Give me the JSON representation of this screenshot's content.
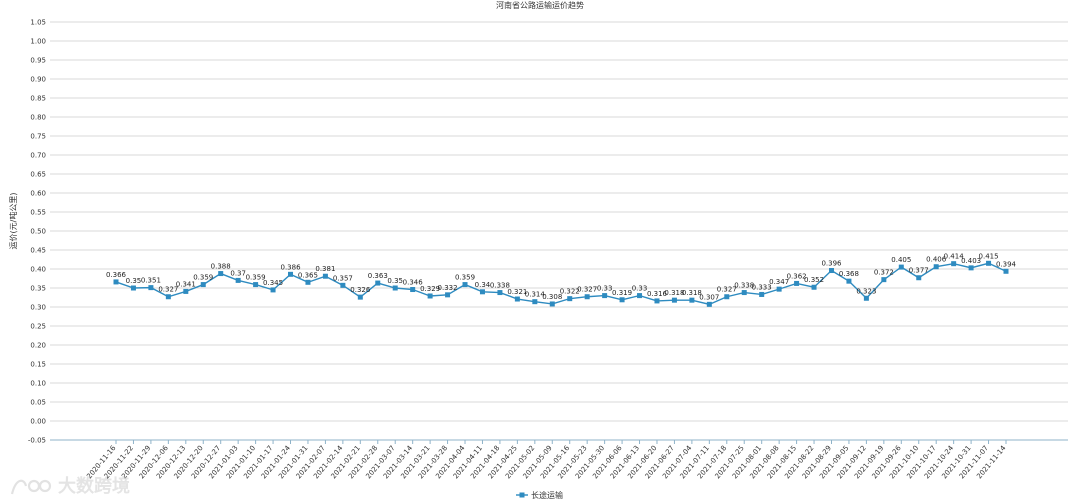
{
  "chart_data": {
    "type": "line",
    "title": "河南省公路运输运价趋势",
    "ylabel": "运价(元/吨公里)",
    "xlabel": "",
    "ylim": [
      -0.05,
      1.05
    ],
    "yticks": [
      "1.05",
      "1.00",
      "0.95",
      "0.90",
      "0.85",
      "0.80",
      "0.75",
      "0.70",
      "0.65",
      "0.60",
      "0.55",
      "0.50",
      "0.45",
      "0.40",
      "0.35",
      "0.30",
      "0.25",
      "0.20",
      "0.15",
      "0.10",
      "0.05",
      "0.00",
      "-0.05"
    ],
    "categories": [
      "2020-11-16",
      "2020-11-22",
      "2020-11-29",
      "2020-12-06",
      "2020-12-13",
      "2020-12-20",
      "2020-12-27",
      "2021-01-03",
      "2021-01-10",
      "2021-01-17",
      "2021-01-24",
      "2021-01-31",
      "2021-02-07",
      "2021-02-14",
      "2021-02-21",
      "2021-02-28",
      "2021-03-07",
      "2021-03-14",
      "2021-03-21",
      "2021-03-28",
      "2021-04-04",
      "2021-04-11",
      "2021-04-18",
      "2021-04-25",
      "2021-05-02",
      "2021-05-09",
      "2021-05-16",
      "2021-05-23",
      "2021-05-30",
      "2021-06-06",
      "2021-06-13",
      "2021-06-20",
      "2021-06-27",
      "2021-07-04",
      "2021-07-11",
      "2021-07-18",
      "2021-07-25",
      "2021-08-01",
      "2021-08-08",
      "2021-08-15",
      "2021-08-22",
      "2021-08-29",
      "2021-09-05",
      "2021-09-12",
      "2021-09-19",
      "2021-09-26",
      "2021-10-10",
      "2021-10-17",
      "2021-10-24",
      "2021-10-31",
      "2021-11-07",
      "2021-11-14"
    ],
    "series": [
      {
        "name": "长途运输",
        "color": "#2e8bc0",
        "values": [
          0.366,
          0.35,
          0.351,
          0.327,
          0.341,
          0.359,
          0.388,
          0.37,
          0.359,
          0.345,
          0.386,
          0.365,
          0.381,
          0.357,
          0.326,
          0.363,
          0.35,
          0.346,
          0.329,
          0.332,
          0.359,
          0.34,
          0.338,
          0.321,
          0.314,
          0.308,
          0.322,
          0.327,
          0.33,
          0.319,
          0.33,
          0.316,
          0.318,
          0.318,
          0.307,
          0.327,
          0.338,
          0.333,
          0.347,
          0.362,
          0.352,
          0.396,
          0.368,
          0.323,
          0.372,
          0.405,
          0.377,
          0.406,
          0.414,
          0.403,
          0.415,
          0.394
        ],
        "labels": [
          "0.366",
          "0.35",
          "0.351",
          "0.327",
          "0.341",
          "0.359",
          "0.388",
          "0.37",
          "0.359",
          "0.345",
          "0.386",
          "0.365",
          "0.381",
          "0.357",
          "0.326",
          "0.363",
          "0.35",
          "0.346",
          "0.329",
          "0.332",
          "0.359",
          "0.34",
          "0.338",
          "0.321",
          "0.314",
          "0.308",
          "0.322",
          "0.327",
          "0.33",
          "0.319",
          "0.33",
          "0.316",
          "0.318",
          "0.318",
          "0.307",
          "0.327",
          "0.338",
          "0.333",
          "0.347",
          "0.362",
          "0.352",
          "0.396",
          "0.368",
          "0.323",
          "0.372",
          "0.405",
          "0.377",
          "0.406",
          "0.414",
          "0.403",
          "0.415",
          "0.394"
        ]
      }
    ],
    "legend_position": "bottom-center",
    "grid": true
  },
  "watermark": {
    "text": "大数跨境"
  }
}
